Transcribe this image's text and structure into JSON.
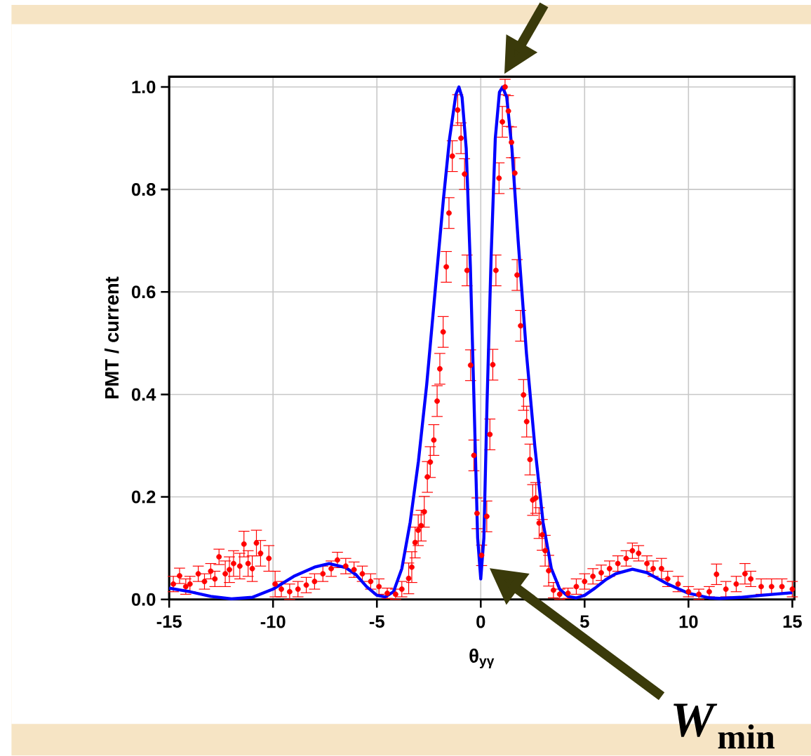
{
  "chart_data": {
    "type": "scatter",
    "xlabel": "θ$_{yγ}$",
    "ylabel": "PMT / current",
    "xlim": [
      -15,
      15.1
    ],
    "ylim": [
      0,
      1.02
    ],
    "xticks": [
      -15,
      -10,
      -5,
      0,
      5,
      10,
      15
    ],
    "yticks": [
      {
        "value": 0,
        "label": "0.0"
      },
      {
        "value": 0.2,
        "label": "0.2"
      },
      {
        "value": 0.4,
        "label": "0.4"
      },
      {
        "value": 0.6,
        "label": "0.6"
      },
      {
        "value": 0.8,
        "label": "0.8"
      },
      {
        "value": 1.0,
        "label": "1.0"
      }
    ],
    "grid": true,
    "annotations": [
      "*W*$_{min}$"
    ],
    "series": [
      {
        "color": "#ff0000",
        "marker": "circle",
        "x": [
          -14.8,
          -14.5,
          -14.2,
          -14.0,
          -13.6,
          -13.3,
          -13.0,
          -12.8,
          -12.6,
          -12.3,
          -12.1,
          -11.9,
          -11.6,
          -11.4,
          -11.2,
          -11.0,
          -10.8,
          -10.6,
          -10.2,
          -9.9,
          -9.6,
          -9.2,
          -8.8,
          -8.4,
          -8.0,
          -7.6,
          -7.2,
          -6.9,
          -6.5,
          -6.1,
          -5.7,
          -5.3,
          -4.9,
          -4.5,
          -4.1,
          -3.8,
          -3.47,
          -3.32,
          -3.16,
          -3.01,
          -2.87,
          -2.72,
          -2.57,
          -2.43,
          -2.26,
          -2.1,
          -1.97,
          -1.81,
          -1.66,
          -1.53,
          -1.37,
          -1.11,
          -0.95,
          -0.78,
          -0.66,
          -0.49,
          -0.33,
          -0.18,
          0.04,
          0.29,
          0.44,
          0.58,
          0.73,
          0.88,
          1.04,
          1.17,
          1.33,
          1.48,
          1.64,
          1.75,
          1.92,
          2.06,
          2.21,
          2.37,
          2.5,
          2.65,
          2.81,
          2.96,
          3.1,
          3.27,
          3.5,
          3.8,
          4.2,
          4.6,
          5.0,
          5.4,
          5.8,
          6.2,
          6.6,
          7.0,
          7.3,
          7.6,
          8.0,
          8.3,
          8.7,
          9.0,
          9.5,
          10.0,
          10.5,
          11.0,
          11.35,
          11.8,
          12.3,
          12.72,
          13.0,
          13.5,
          14.0,
          14.5,
          15.0
        ],
        "values": [
          0.03,
          0.046,
          0.025,
          0.03,
          0.05,
          0.035,
          0.055,
          0.04,
          0.083,
          0.05,
          0.058,
          0.07,
          0.065,
          0.108,
          0.07,
          0.06,
          0.11,
          0.09,
          0.08,
          0.03,
          0.02,
          0.015,
          0.02,
          0.028,
          0.035,
          0.05,
          0.06,
          0.077,
          0.065,
          0.058,
          0.05,
          0.035,
          0.025,
          0.012,
          0.01,
          0.02,
          0.041,
          0.063,
          0.111,
          0.135,
          0.144,
          0.171,
          0.239,
          0.268,
          0.311,
          0.387,
          0.45,
          0.522,
          0.649,
          0.754,
          0.865,
          0.955,
          0.9,
          0.83,
          0.642,
          0.457,
          0.281,
          0.168,
          0.086,
          0.162,
          0.322,
          0.458,
          0.642,
          0.822,
          0.932,
          1.0,
          0.953,
          0.892,
          0.832,
          0.633,
          0.534,
          0.399,
          0.347,
          0.273,
          0.194,
          0.198,
          0.149,
          0.126,
          0.095,
          0.056,
          0.018,
          0.01,
          0.012,
          0.025,
          0.035,
          0.045,
          0.052,
          0.06,
          0.07,
          0.08,
          0.095,
          0.09,
          0.07,
          0.06,
          0.06,
          0.04,
          0.03,
          0.015,
          0.01,
          0.015,
          0.049,
          0.02,
          0.03,
          0.05,
          0.04,
          0.025,
          0.025,
          0.025,
          0.02
        ],
        "errors": [
          0.015,
          0.015,
          0.015,
          0.015,
          0.015,
          0.015,
          0.015,
          0.015,
          0.015,
          0.025,
          0.025,
          0.025,
          0.025,
          0.025,
          0.025,
          0.025,
          0.025,
          0.025,
          0.025,
          0.025,
          0.015,
          0.015,
          0.015,
          0.015,
          0.015,
          0.015,
          0.015,
          0.015,
          0.015,
          0.015,
          0.015,
          0.015,
          0.015,
          0.01,
          0.01,
          0.015,
          0.03,
          0.03,
          0.03,
          0.03,
          0.03,
          0.03,
          0.03,
          0.03,
          0.03,
          0.03,
          0.03,
          0.03,
          0.03,
          0.03,
          0.03,
          0.03,
          0.03,
          0.03,
          0.03,
          0.03,
          0.03,
          0.03,
          0.02,
          0.03,
          0.03,
          0.03,
          0.03,
          0.03,
          0.03,
          0.015,
          0.03,
          0.03,
          0.03,
          0.03,
          0.03,
          0.03,
          0.03,
          0.03,
          0.03,
          0.03,
          0.03,
          0.03,
          0.03,
          0.03,
          0.015,
          0.01,
          0.01,
          0.015,
          0.015,
          0.015,
          0.015,
          0.015,
          0.015,
          0.015,
          0.015,
          0.015,
          0.015,
          0.015,
          0.02,
          0.015,
          0.015,
          0.01,
          0.01,
          0.01,
          0.02,
          0.015,
          0.015,
          0.02,
          0.015,
          0.015,
          0.015,
          0.015,
          0.015
        ]
      },
      {
        "type": "line",
        "color": "#0000ff",
        "marker": "none",
        "line_style": "solid",
        "x": [
          -15,
          -14,
          -13,
          -12,
          -11,
          -10,
          -9,
          -8,
          -7.3,
          -6.5,
          -6,
          -5.5,
          -5,
          -4.6,
          -4.2,
          -3.8,
          -3.4,
          -3,
          -2.6,
          -2.2,
          -1.8,
          -1.5,
          -1.2,
          -1.05,
          -0.9,
          -0.7,
          -0.5,
          -0.3,
          -0.15,
          0,
          0.15,
          0.3,
          0.5,
          0.7,
          0.9,
          1.05,
          1.25,
          1.5,
          1.8,
          2.2,
          2.6,
          3,
          3.4,
          3.8,
          4.2,
          4.6,
          5,
          5.5,
          6,
          6.5,
          7.3,
          8,
          9,
          10,
          11,
          11.5,
          12.5,
          13.5,
          15
        ],
        "values": [
          0.022,
          0.015,
          0.006,
          0.001,
          0.004,
          0.02,
          0.045,
          0.063,
          0.07,
          0.062,
          0.048,
          0.025,
          0.008,
          0.005,
          0.015,
          0.06,
          0.15,
          0.27,
          0.42,
          0.6,
          0.78,
          0.9,
          0.985,
          1.0,
          0.98,
          0.88,
          0.65,
          0.35,
          0.12,
          0.04,
          0.12,
          0.38,
          0.67,
          0.9,
          0.99,
          1.0,
          0.98,
          0.88,
          0.7,
          0.48,
          0.3,
          0.15,
          0.06,
          0.02,
          0.006,
          0.003,
          0.008,
          0.022,
          0.038,
          0.05,
          0.059,
          0.052,
          0.03,
          0.012,
          0.003,
          0.002,
          0.004,
          0.008,
          0.013
        ]
      }
    ]
  }
}
